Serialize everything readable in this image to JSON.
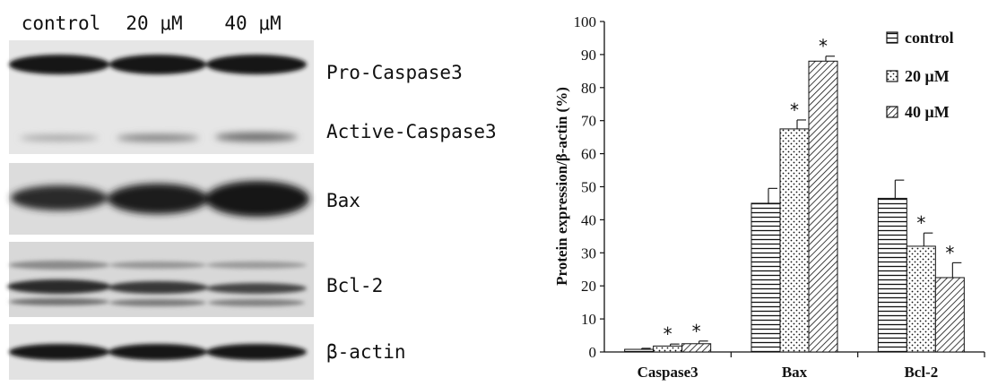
{
  "blot": {
    "lanes": [
      "control",
      "20 μM",
      "40 μM"
    ],
    "proteins": [
      "Pro-Caspase3",
      "Active-Caspase3",
      "Bax",
      "Bcl-2",
      "β-actin"
    ]
  },
  "chart_data": {
    "type": "bar",
    "title": "",
    "xlabel": "",
    "ylabel": "Protein expression/β-actin (%)",
    "ylim": [
      0,
      100
    ],
    "yticks": [
      0,
      10,
      20,
      30,
      40,
      50,
      60,
      70,
      80,
      90,
      100
    ],
    "categories": [
      "Caspase3",
      "Bax",
      "Bcl-2"
    ],
    "series": [
      {
        "name": "control",
        "pattern": "horizontal-lines",
        "values": [
          0.8,
          45,
          46.5
        ],
        "errors": [
          0.3,
          4.5,
          5.5
        ],
        "significant": [
          false,
          false,
          false
        ]
      },
      {
        "name": "20 μM",
        "pattern": "dots",
        "values": [
          1.8,
          67.5,
          32
        ],
        "errors": [
          0.6,
          2.7,
          4
        ],
        "significant": [
          true,
          true,
          true
        ]
      },
      {
        "name": "40 μM",
        "pattern": "diagonal-lines",
        "values": [
          2.5,
          88,
          22.5
        ],
        "errors": [
          0.8,
          1.5,
          4.5
        ],
        "significant": [
          true,
          true,
          true
        ]
      }
    ],
    "significance_marker": "*",
    "legend_position": "top-right",
    "grid": false,
    "colors": {
      "bar_stroke": "#111111",
      "background": "#ffffff"
    }
  }
}
